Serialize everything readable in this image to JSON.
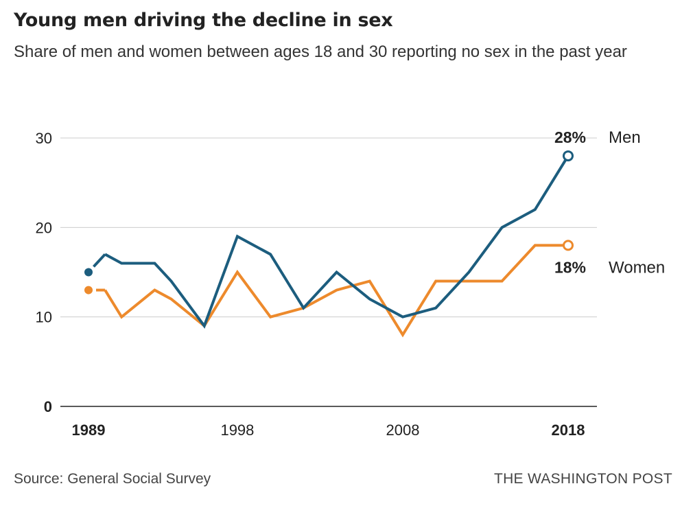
{
  "header": {
    "title": "Young men driving the decline in sex",
    "subtitle": "Share of men and women between ages 18 and 30 reporting no sex in the past year"
  },
  "footer": {
    "source": "Source: General Social Survey",
    "credit": "THE WASHINGTON POST"
  },
  "chart_data": {
    "type": "line",
    "title": "Young men driving the decline in sex",
    "subtitle": "Share of men and women between ages 18 and 30 reporting no sex in the past year",
    "xlabel": "",
    "ylabel": "",
    "xlim": [
      1989,
      2018
    ],
    "ylim": [
      0,
      30
    ],
    "y_ticks": [
      0,
      10,
      20,
      30
    ],
    "x_ticks": [
      {
        "value": 1989,
        "label": "1989",
        "bold": true
      },
      {
        "value": 1998,
        "label": "1998",
        "bold": false
      },
      {
        "value": 2008,
        "label": "2008",
        "bold": false
      },
      {
        "value": 2018,
        "label": "2018",
        "bold": true
      }
    ],
    "grid": "horizontal",
    "legend": "direct labels at line ends",
    "x": [
      1989,
      1990,
      1991,
      1993,
      1994,
      1996,
      1998,
      2000,
      2002,
      2004,
      2006,
      2008,
      2010,
      2012,
      2014,
      2016,
      2018
    ],
    "series": [
      {
        "name": "Men",
        "color": "#1c5d7e",
        "end_label": "28%",
        "values": [
          15,
          17,
          16,
          16,
          14,
          9,
          19,
          17,
          11,
          15,
          12,
          10,
          11,
          15,
          20,
          22,
          28
        ]
      },
      {
        "name": "Women",
        "color": "#ed8a2c",
        "end_label": "18%",
        "values": [
          13,
          13,
          10,
          13,
          12,
          9,
          15,
          10,
          11,
          13,
          14,
          8,
          14,
          14,
          14,
          18,
          18
        ]
      }
    ]
  }
}
